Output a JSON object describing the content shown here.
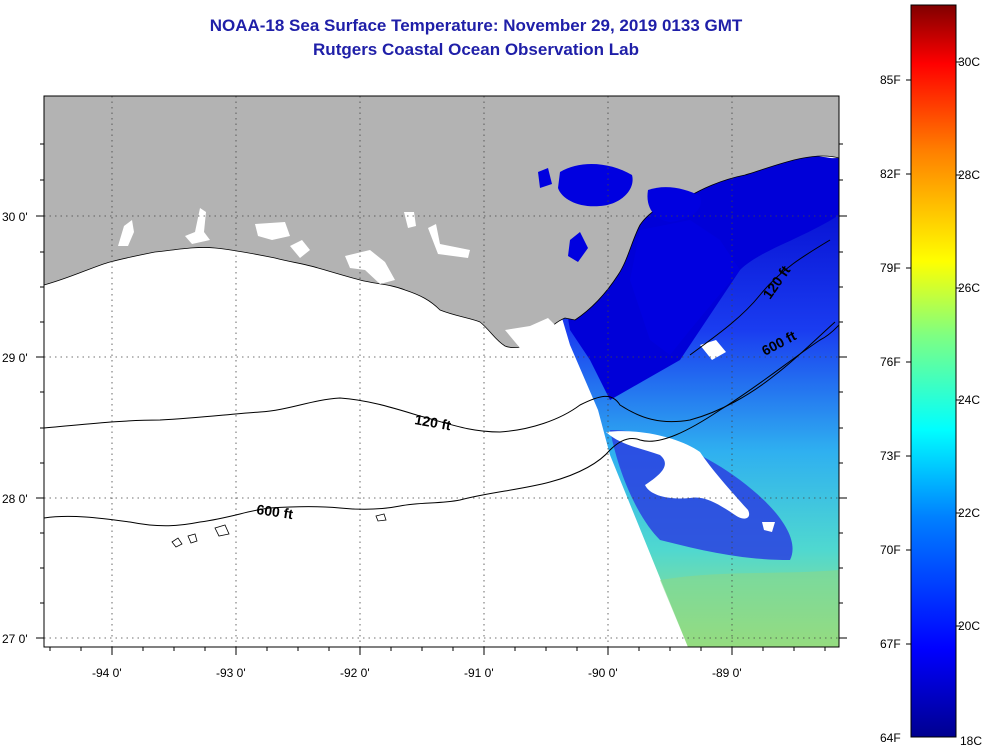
{
  "title": "NOAA-18 Sea Surface Temperature:  November 29, 2019 0133 GMT",
  "subtitle": "Rutgers Coastal Ocean Observation Lab",
  "map": {
    "lat_labels": [
      "30 0'",
      "29 0'",
      "28 0'",
      "27 0'"
    ],
    "lon_labels": [
      "-94 0'",
      "-93 0'",
      "-92 0'",
      "-91 0'",
      "-90 0'",
      "-89 0'"
    ],
    "contours": {
      "c120_left": "120 ft",
      "c600_left": "600 ft",
      "c120_right": "120 ft",
      "c600_right": "600 ft"
    }
  },
  "colorbar": {
    "f_labels": [
      "85F",
      "82F",
      "79F",
      "76F",
      "73F",
      "70F",
      "67F",
      "64F"
    ],
    "c_labels": [
      "30C",
      "28C",
      "26C",
      "24C",
      "22C",
      "20C",
      "18C"
    ],
    "colors": [
      "#00008f",
      "#0000ff",
      "#0080ff",
      "#00ffff",
      "#80ff80",
      "#ffff00",
      "#ff8000",
      "#ff0000",
      "#800000"
    ]
  },
  "colors": {
    "land": "#b3b3b3",
    "title": "#1f1fa8"
  }
}
